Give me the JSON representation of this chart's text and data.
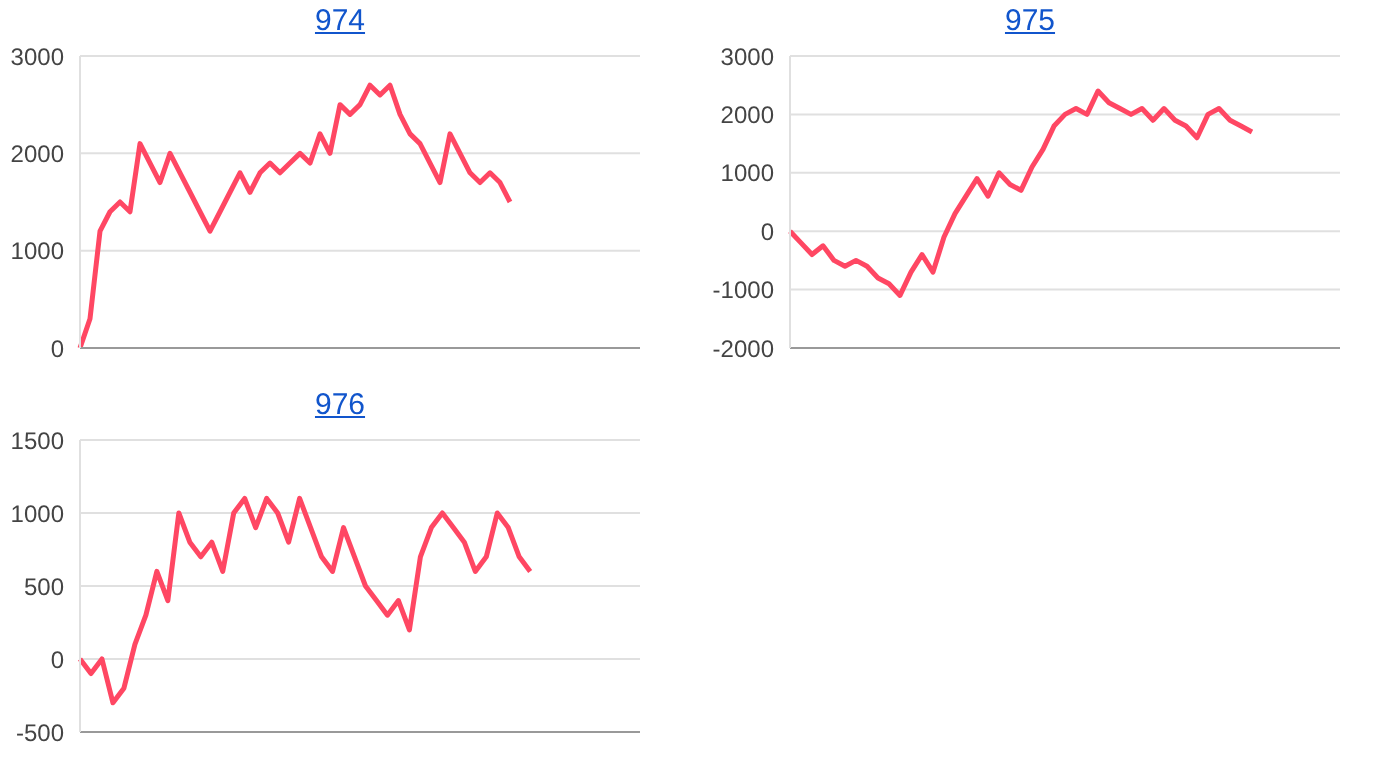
{
  "chart_data": [
    {
      "type": "line",
      "title": "974",
      "categories": [
        null,
        null,
        null,
        null,
        null,
        null,
        null,
        null,
        null,
        null,
        null,
        null,
        null,
        null,
        null,
        null,
        null,
        null,
        null,
        null,
        null,
        null,
        null,
        null,
        null,
        null,
        null,
        null,
        null,
        null,
        null,
        null,
        null,
        null,
        null,
        null,
        null,
        null,
        null,
        null,
        null,
        null,
        null,
        null,
        null,
        null,
        null,
        null,
        null,
        null,
        null,
        null,
        null,
        null,
        null,
        null,
        null
      ],
      "series": [
        {
          "color": "#ff4763",
          "values": [
            0,
            300,
            1200,
            1400,
            1500,
            1400,
            2100,
            1900,
            1700,
            2000,
            1800,
            1600,
            1400,
            1200,
            1400,
            1600,
            1800,
            1600,
            1800,
            1900,
            1800,
            1900,
            2000,
            1900,
            2200,
            2000,
            2500,
            2400,
            2500,
            2700,
            2600,
            2700,
            2400,
            2200,
            2100,
            1900,
            1700,
            2200,
            2000,
            1800,
            1700,
            1800,
            1700,
            1500,
            null,
            null,
            null,
            null,
            null,
            null,
            null,
            null,
            null,
            null,
            null,
            null,
            null
          ]
        }
      ],
      "ylim": [
        0,
        3000
      ],
      "yticks": [
        0,
        1000,
        2000,
        3000
      ],
      "grid": "y",
      "tick_labels": "y",
      "legend": false,
      "marker": "none",
      "line_style": "solid"
    },
    {
      "type": "line",
      "title": "975",
      "categories": [
        null,
        null,
        null,
        null,
        null,
        null,
        null,
        null,
        null,
        null,
        null,
        null,
        null,
        null,
        null,
        null,
        null,
        null,
        null,
        null,
        null,
        null,
        null,
        null,
        null,
        null,
        null,
        null,
        null,
        null,
        null,
        null,
        null,
        null,
        null,
        null,
        null,
        null,
        null,
        null,
        null,
        null,
        null,
        null,
        null,
        null,
        null,
        null,
        null,
        null,
        null
      ],
      "series": [
        {
          "color": "#ff4763",
          "values": [
            0,
            -200,
            -400,
            -250,
            -500,
            -600,
            -500,
            -600,
            -800,
            -900,
            -1100,
            -700,
            -400,
            -700,
            -100,
            300,
            600,
            900,
            600,
            1000,
            800,
            700,
            1100,
            1400,
            1800,
            2000,
            2100,
            2000,
            2400,
            2200,
            2100,
            2000,
            2100,
            1900,
            2100,
            1900,
            1800,
            1600,
            2000,
            2100,
            1900,
            1800,
            1700,
            null,
            null,
            null,
            null,
            null,
            null,
            null,
            null
          ]
        }
      ],
      "ylim": [
        -2000,
        3000
      ],
      "yticks": [
        -2000,
        -1000,
        0,
        1000,
        2000,
        3000
      ],
      "grid": "y",
      "tick_labels": "y",
      "legend": false,
      "marker": "none",
      "line_style": "solid"
    },
    {
      "type": "line",
      "title": "976",
      "categories": [
        null,
        null,
        null,
        null,
        null,
        null,
        null,
        null,
        null,
        null,
        null,
        null,
        null,
        null,
        null,
        null,
        null,
        null,
        null,
        null,
        null,
        null,
        null,
        null,
        null,
        null,
        null,
        null,
        null,
        null,
        null,
        null,
        null,
        null,
        null,
        null,
        null,
        null,
        null,
        null,
        null,
        null,
        null,
        null,
        null,
        null,
        null,
        null,
        null,
        null,
        null,
        null
      ],
      "series": [
        {
          "color": "#ff4763",
          "values": [
            0,
            -100,
            0,
            -300,
            -200,
            100,
            300,
            600,
            400,
            1000,
            800,
            700,
            800,
            600,
            1000,
            1100,
            900,
            1100,
            1000,
            800,
            1100,
            900,
            700,
            600,
            900,
            700,
            500,
            400,
            300,
            400,
            200,
            700,
            900,
            1000,
            900,
            800,
            600,
            700,
            1000,
            900,
            700,
            600,
            null,
            null,
            null,
            null,
            null,
            null,
            null,
            null,
            null,
            null
          ]
        }
      ],
      "ylim": [
        -500,
        1500
      ],
      "yticks": [
        -500,
        0,
        500,
        1000,
        1500
      ],
      "grid": "y",
      "tick_labels": "y",
      "legend": false,
      "marker": "none",
      "line_style": "solid"
    }
  ]
}
